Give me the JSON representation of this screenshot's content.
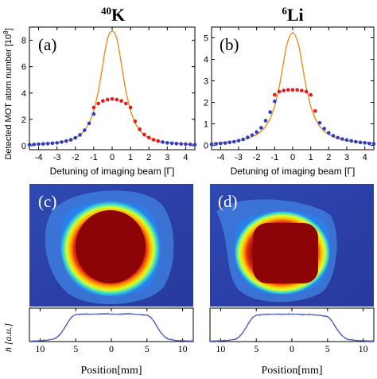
{
  "figure": {
    "ylabel_atoms": "Detected MOT atom number [10",
    "ylabel_atoms_exp": "8",
    "ylabel_atoms_end": "]",
    "ylabel_profile": "n̄ [a.u.]",
    "images": [
      {
        "label": "(c)",
        "title_mass": "40",
        "title_element": "K"
      },
      {
        "label": "(d)",
        "title_mass": "6",
        "title_element": "Li"
      }
    ]
  },
  "chart_data": [
    {
      "type": "line",
      "panel": "(a)",
      "title": "40K",
      "xlabel": "Detuning of imaging beam [Γ]",
      "ylabel": "Detected MOT atom number [10^8]",
      "xlim": [
        -4.5,
        4.5
      ],
      "ylim": [
        -0.3,
        9
      ],
      "xticks": [
        -4,
        -3,
        -2,
        -1,
        0,
        1,
        2,
        3,
        4
      ],
      "yticks": [
        0,
        2,
        4,
        6,
        8
      ],
      "grid": false,
      "colors": {
        "fit": "#f08c1e",
        "saturated": "#e8181c",
        "data": "#2b3fc9"
      },
      "series": [
        {
          "style": "line",
          "x": [
            -4.5,
            -4,
            -3.5,
            -3,
            -2.5,
            -2,
            -1.75,
            -1.5,
            -1.25,
            -1,
            -0.75,
            -0.5,
            -0.375,
            -0.25,
            -0.125,
            0,
            0.125,
            0.25,
            0.375,
            0.5,
            0.75,
            1,
            1.25,
            1.5,
            1.75,
            2,
            2.5,
            3,
            3.5,
            4,
            4.5
          ],
          "y": [
            0.1,
            0.13,
            0.17,
            0.23,
            0.35,
            0.58,
            0.8,
            1.15,
            1.7,
            2.65,
            4.1,
            6.2,
            7.3,
            8.15,
            8.6,
            8.7,
            8.6,
            8.15,
            7.3,
            6.2,
            4.1,
            2.65,
            1.7,
            1.15,
            0.8,
            0.58,
            0.35,
            0.23,
            0.17,
            0.13,
            0.1
          ]
        },
        {
          "style": "points",
          "x": [
            -4.5,
            -4.25,
            -4,
            -3.75,
            -3.5,
            -3.25,
            -3,
            -2.75,
            -2.5,
            -2.25,
            -2,
            -1.75,
            -1.5,
            -1.25,
            -1,
            2.75,
            3,
            3.25,
            3.5,
            3.75,
            4,
            4.25,
            4.5
          ],
          "y": [
            0.08,
            0.1,
            0.12,
            0.14,
            0.16,
            0.19,
            0.22,
            0.28,
            0.35,
            0.45,
            0.6,
            0.82,
            1.18,
            1.7,
            2.4,
            0.28,
            0.22,
            0.19,
            0.16,
            0.14,
            0.12,
            0.1,
            0.08
          ]
        },
        {
          "style": "points",
          "x": [
            -1,
            -0.75,
            -0.5,
            -0.25,
            0,
            0.25,
            0.5,
            0.75,
            1,
            1.25,
            1.5,
            1.75,
            2,
            2.25,
            2.5
          ],
          "y": [
            2.9,
            3.2,
            3.4,
            3.5,
            3.55,
            3.5,
            3.4,
            3.2,
            2.9,
            1.85,
            1.25,
            0.85,
            0.62,
            0.46,
            0.36
          ]
        }
      ]
    },
    {
      "type": "line",
      "panel": "(b)",
      "title": "6Li",
      "xlabel": "Detuning of imaging beam [Γ]",
      "ylabel": "",
      "xlim": [
        -4.5,
        4.5
      ],
      "ylim": [
        -0.2,
        5.5
      ],
      "xticks": [
        -4,
        -3,
        -2,
        -1,
        0,
        1,
        2,
        3,
        4
      ],
      "yticks": [
        0,
        1,
        2,
        3,
        4,
        5
      ],
      "grid": false,
      "colors": {
        "fit": "#f08c1e",
        "saturated": "#e8181c",
        "data": "#2b3fc9"
      },
      "series": [
        {
          "style": "line",
          "x": [
            -4.5,
            -4,
            -3.5,
            -3,
            -2.5,
            -2,
            -1.75,
            -1.5,
            -1.25,
            -1,
            -0.75,
            -0.5,
            -0.375,
            -0.25,
            -0.125,
            0,
            0.125,
            0.25,
            0.375,
            0.5,
            0.75,
            1,
            1.25,
            1.5,
            1.75,
            2,
            2.5,
            3,
            3.5,
            4,
            4.5
          ],
          "y": [
            0.1,
            0.13,
            0.17,
            0.22,
            0.32,
            0.5,
            0.65,
            0.88,
            1.25,
            1.8,
            2.7,
            3.9,
            4.5,
            4.9,
            5.15,
            5.25,
            5.15,
            4.9,
            4.5,
            3.9,
            2.7,
            1.8,
            1.25,
            0.88,
            0.65,
            0.5,
            0.32,
            0.22,
            0.17,
            0.13,
            0.1
          ]
        },
        {
          "style": "points",
          "x": [
            -4.5,
            -4.25,
            -4,
            -3.75,
            -3.5,
            -3.25,
            -3,
            -2.75,
            -2.5,
            -2.25,
            -2,
            -1.75,
            -1.5,
            -1.25,
            -1,
            1.5,
            1.75,
            2,
            2.25,
            2.5,
            2.75,
            3,
            3.25,
            3.5,
            3.75,
            4,
            4.25,
            4.5
          ],
          "y": [
            0.05,
            0.07,
            0.09,
            0.11,
            0.14,
            0.17,
            0.22,
            0.28,
            0.37,
            0.48,
            0.62,
            0.82,
            1.15,
            1.55,
            2.05,
            1.05,
            0.78,
            0.58,
            0.45,
            0.36,
            0.3,
            0.25,
            0.21,
            0.17,
            0.14,
            0.12,
            0.09,
            0.07
          ]
        },
        {
          "style": "points",
          "x": [
            -1,
            -0.75,
            -0.5,
            -0.25,
            0,
            0.25,
            0.5,
            0.75,
            1,
            1.25
          ],
          "y": [
            2.35,
            2.5,
            2.55,
            2.58,
            2.58,
            2.58,
            2.55,
            2.5,
            2.35,
            1.6
          ]
        }
      ]
    },
    {
      "type": "line",
      "panel": "(c)",
      "xlabel": "Position[mm]",
      "xlim": [
        11.5,
        -11.5
      ],
      "xticks": [
        10,
        5,
        0,
        -5,
        -10
      ],
      "xtick_labels": [
        "10",
        "5",
        "0",
        "5",
        "10"
      ],
      "ylim": [
        0,
        1.2
      ],
      "colors": {
        "profile": "#4a58b8"
      },
      "series": [
        {
          "style": "line",
          "x": [
            11.5,
            11,
            10,
            9,
            8,
            7.5,
            7,
            6.5,
            6,
            5.5,
            5,
            4,
            3,
            2,
            1,
            0,
            -1,
            -2,
            -3,
            -4,
            -5,
            -5.5,
            -6,
            -6.5,
            -7,
            -7.5,
            -8,
            -9,
            -10,
            -11,
            -11.5
          ],
          "y": [
            0.02,
            0.02,
            0.03,
            0.05,
            0.1,
            0.18,
            0.32,
            0.52,
            0.74,
            0.9,
            0.97,
            0.99,
            0.98,
            0.99,
            1.0,
            0.99,
            0.98,
            1.0,
            0.99,
            0.97,
            0.95,
            0.88,
            0.72,
            0.5,
            0.3,
            0.17,
            0.09,
            0.04,
            0.03,
            0.02,
            0.02
          ]
        }
      ]
    },
    {
      "type": "line",
      "panel": "(d)",
      "xlabel": "Position[mm]",
      "xlim": [
        11.5,
        -11.5
      ],
      "xticks": [
        10,
        5,
        0,
        -5,
        -10
      ],
      "xtick_labels": [
        "10",
        "5",
        "0",
        "5",
        "10"
      ],
      "ylim": [
        0,
        1.2
      ],
      "colors": {
        "profile": "#4a58b8"
      },
      "series": [
        {
          "style": "line",
          "x": [
            11.5,
            11,
            10,
            9,
            8,
            7.5,
            7,
            6.5,
            6,
            5.5,
            5,
            4,
            3,
            2,
            1,
            0,
            -1,
            -2,
            -3,
            -4,
            -5,
            -5.5,
            -6,
            -6.5,
            -7,
            -7.5,
            -8,
            -9,
            -10,
            -11,
            -11.5
          ],
          "y": [
            0.02,
            0.02,
            0.03,
            0.04,
            0.08,
            0.15,
            0.28,
            0.48,
            0.7,
            0.87,
            0.95,
            0.97,
            0.98,
            0.99,
            0.98,
            0.99,
            0.98,
            0.97,
            0.96,
            0.94,
            0.9,
            0.78,
            0.58,
            0.38,
            0.22,
            0.12,
            0.07,
            0.04,
            0.03,
            0.02,
            0.02
          ]
        }
      ]
    }
  ]
}
